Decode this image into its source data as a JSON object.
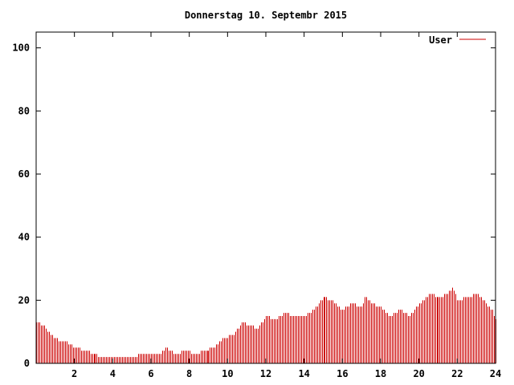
{
  "chart_data": {
    "type": "bar",
    "title": "Donnerstag 10. Septembr 2015",
    "xlabel": "",
    "ylabel": "",
    "xlim": [
      0,
      24
    ],
    "ylim": [
      0,
      105
    ],
    "x_ticks": [
      2,
      4,
      6,
      8,
      10,
      12,
      14,
      16,
      18,
      20,
      22,
      24
    ],
    "y_ticks": [
      0,
      20,
      40,
      60,
      80,
      100
    ],
    "grid": false,
    "legend": "top-right",
    "series": [
      {
        "name": "User",
        "color": "#cc0000",
        "anchors": [
          [
            0.0,
            13
          ],
          [
            0.4,
            12
          ],
          [
            0.6,
            10
          ],
          [
            1.0,
            8
          ],
          [
            1.2,
            7
          ],
          [
            1.5,
            7
          ],
          [
            1.8,
            6
          ],
          [
            2.0,
            5
          ],
          [
            2.6,
            4
          ],
          [
            3.0,
            3
          ],
          [
            3.5,
            2
          ],
          [
            5.0,
            2
          ],
          [
            5.5,
            3
          ],
          [
            6.5,
            3
          ],
          [
            6.8,
            5
          ],
          [
            7.2,
            3
          ],
          [
            7.8,
            4
          ],
          [
            8.2,
            3
          ],
          [
            8.8,
            4
          ],
          [
            9.3,
            5
          ],
          [
            9.8,
            8
          ],
          [
            10.3,
            9
          ],
          [
            10.8,
            13
          ],
          [
            11.2,
            12
          ],
          [
            11.6,
            11
          ],
          [
            12.0,
            15
          ],
          [
            12.5,
            14
          ],
          [
            13.0,
            16
          ],
          [
            13.5,
            15
          ],
          [
            14.0,
            15
          ],
          [
            14.5,
            17
          ],
          [
            15.0,
            21
          ],
          [
            15.5,
            20
          ],
          [
            16.0,
            17
          ],
          [
            16.5,
            19
          ],
          [
            17.0,
            18
          ],
          [
            17.2,
            21
          ],
          [
            17.5,
            19
          ],
          [
            18.0,
            18
          ],
          [
            18.5,
            15
          ],
          [
            19.0,
            17
          ],
          [
            19.5,
            15
          ],
          [
            20.0,
            19
          ],
          [
            20.5,
            22
          ],
          [
            21.0,
            21
          ],
          [
            21.5,
            22
          ],
          [
            21.8,
            24
          ],
          [
            22.0,
            20
          ],
          [
            22.5,
            21
          ],
          [
            23.0,
            22
          ],
          [
            23.5,
            19
          ],
          [
            23.8,
            17
          ],
          [
            24.0,
            14
          ]
        ]
      }
    ]
  }
}
